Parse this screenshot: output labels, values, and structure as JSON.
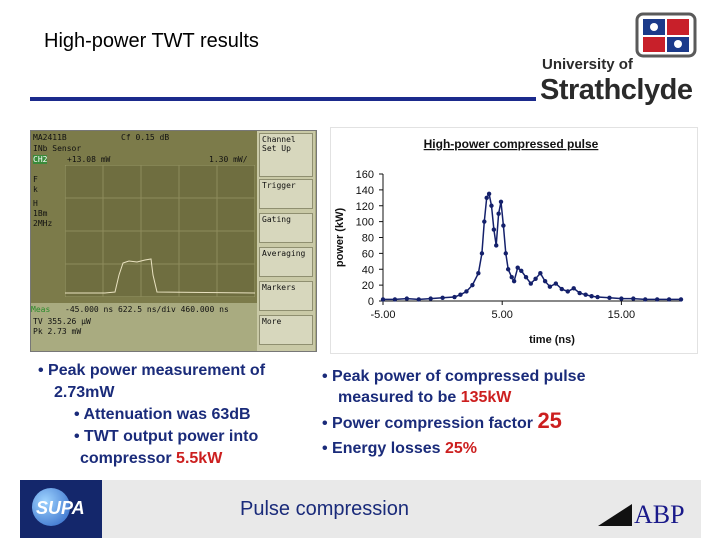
{
  "slide": {
    "title": "High-power TWT results",
    "footer": "Pulse compression"
  },
  "logos": {
    "university_line1": "University of",
    "university_line2": "Strathclyde",
    "supa": "SUPA",
    "abp": "ABP"
  },
  "scope": {
    "header_lines": [
      "MA2411B",
      "Cf  0.15 dB",
      "INb Sensor",
      "CH2",
      "+13.08 mW",
      "1.30 mW/"
    ],
    "left_labels": [
      "F",
      "k",
      "H",
      "1Bm",
      "2MHz"
    ],
    "bottom_lines": [
      "-45.000 ns   622.5 ns/div  460.000 ns",
      "Meas",
      "TV  355.26 µW",
      "Pk   2.73 mW"
    ],
    "menu": [
      "Channel\nSet Up",
      "Trigger",
      "Gating",
      "Averaging",
      "Markers",
      "More"
    ]
  },
  "chart_data": {
    "type": "scatter",
    "title": "High-power compressed pulse",
    "xlabel": "time (ns)",
    "ylabel": "power (kW)",
    "xlim": [
      -5,
      20
    ],
    "ylim": [
      0,
      160
    ],
    "xticks": [
      -5,
      5,
      15
    ],
    "xtick_labels": [
      "-5.00",
      "5.00",
      "15.00"
    ],
    "yticks": [
      0,
      20,
      40,
      60,
      80,
      100,
      120,
      140,
      160
    ],
    "grid": false,
    "points": [
      [
        -5,
        2
      ],
      [
        -4,
        2
      ],
      [
        -3,
        3
      ],
      [
        -2,
        2
      ],
      [
        -1,
        3
      ],
      [
        0,
        4
      ],
      [
        1,
        5
      ],
      [
        1.5,
        8
      ],
      [
        2,
        12
      ],
      [
        2.5,
        20
      ],
      [
        3,
        35
      ],
      [
        3.3,
        60
      ],
      [
        3.5,
        100
      ],
      [
        3.7,
        130
      ],
      [
        3.9,
        135
      ],
      [
        4.1,
        120
      ],
      [
        4.3,
        90
      ],
      [
        4.5,
        70
      ],
      [
        4.7,
        110
      ],
      [
        4.9,
        125
      ],
      [
        5.1,
        95
      ],
      [
        5.3,
        60
      ],
      [
        5.5,
        40
      ],
      [
        5.8,
        30
      ],
      [
        6,
        25
      ],
      [
        6.3,
        42
      ],
      [
        6.6,
        38
      ],
      [
        7,
        30
      ],
      [
        7.4,
        22
      ],
      [
        7.8,
        28
      ],
      [
        8.2,
        35
      ],
      [
        8.6,
        25
      ],
      [
        9,
        18
      ],
      [
        9.5,
        22
      ],
      [
        10,
        15
      ],
      [
        10.5,
        12
      ],
      [
        11,
        16
      ],
      [
        11.5,
        10
      ],
      [
        12,
        8
      ],
      [
        12.5,
        6
      ],
      [
        13,
        5
      ],
      [
        14,
        4
      ],
      [
        15,
        3
      ],
      [
        16,
        3
      ],
      [
        17,
        2
      ],
      [
        18,
        2
      ],
      [
        19,
        2
      ],
      [
        20,
        2
      ]
    ],
    "series_color": "#14206b"
  },
  "bullets_left": [
    {
      "text": "• Peak power measurement of"
    },
    {
      "text": "2.73mW"
    },
    {
      "text": "• Attenuation was 63dB"
    },
    {
      "text": "• TWT output power into"
    },
    {
      "pre": "compressor ",
      "highlight": "5.5kW"
    }
  ],
  "bullets_right": [
    {
      "text": "• Peak power of compressed pulse"
    },
    {
      "pre": "measured to be ",
      "highlight": "135kW"
    },
    {
      "pre": "• Power compression factor ",
      "highlight": "25"
    },
    {
      "pre": "• Energy losses ",
      "highlight": "25%"
    }
  ]
}
